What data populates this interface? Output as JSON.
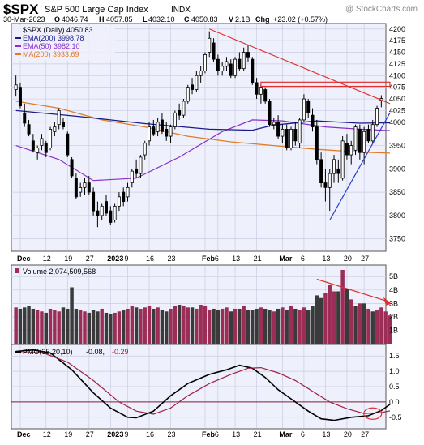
{
  "header": {
    "symbol": "$SPX",
    "name": "S&P 500 Large Cap Index",
    "exchange": "INDX",
    "watermark": "@ StockCharts.com",
    "date": "30-Mar-2023",
    "open_label": "O",
    "open": "4046.74",
    "high_label": "H",
    "high": "4057.85",
    "low_label": "L",
    "low": "4032.10",
    "close_label": "C",
    "close": "4050.83",
    "volume_label": "V",
    "volume": "2.1B",
    "change_label": "Chg",
    "change": "+23.02 (+0.57%)"
  },
  "colors": {
    "up": "#000000",
    "down": "#000000",
    "ema200": "#1a1a8c",
    "ema50": "#8b2fc9",
    "ma200": "#e07b2a",
    "trend_red": "#e03030",
    "trend_blue": "#2a3fcf",
    "vol_up": "#9b2d57",
    "vol_down": "#3a3a3a",
    "pmo": "#000000",
    "pmo_signal": "#a02040",
    "panel_bg": "#eef0fb",
    "grid": "#c9cde3"
  },
  "legend": {
    "price": "$SPX (Daily) 4050.83",
    "ema200": "EMA(200) 3998.78",
    "ema50": "EMA(50) 3982.10",
    "ma200": "MA(200) 3933.69",
    "volume": "Volume 2,074,509,568",
    "pmo_label": "PMO(35,20,10)",
    "pmo_value": "-0.08,",
    "pmo_signal_value": "-0.29"
  },
  "x_labels": [
    "Dec",
    "12",
    "19",
    "27",
    "2023",
    "9",
    "16",
    "23",
    "Feb",
    "6",
    "13",
    "21",
    "Mar",
    "6",
    "13",
    "20",
    "27"
  ],
  "chart_data": [
    {
      "type": "candlestick",
      "title": "$SPX (Daily) 4050.83",
      "ylim": [
        3725,
        4210
      ],
      "y_ticks": [
        3750,
        3800,
        3850,
        3900,
        3950,
        4000,
        4025,
        4050,
        4075,
        4100,
        4125,
        4150,
        4175,
        4200
      ],
      "bars": [
        {
          "o": 4070,
          "h": 4100,
          "l": 4055,
          "c": 4080
        },
        {
          "o": 4075,
          "h": 4085,
          "l": 4030,
          "c": 4035
        },
        {
          "o": 4020,
          "h": 4040,
          "l": 3990,
          "c": 3998
        },
        {
          "o": 3995,
          "h": 4005,
          "l": 3970,
          "c": 3975
        },
        {
          "o": 3960,
          "h": 3975,
          "l": 3935,
          "c": 3940
        },
        {
          "o": 3935,
          "h": 3950,
          "l": 3920,
          "c": 3945
        },
        {
          "o": 3950,
          "h": 3975,
          "l": 3940,
          "c": 3965
        },
        {
          "o": 3955,
          "h": 3960,
          "l": 3925,
          "c": 3935
        },
        {
          "o": 3945,
          "h": 3990,
          "l": 3940,
          "c": 3985
        },
        {
          "o": 3980,
          "h": 4000,
          "l": 3970,
          "c": 3990
        },
        {
          "o": 3995,
          "h": 4030,
          "l": 3985,
          "c": 4025
        },
        {
          "o": 4000,
          "h": 4010,
          "l": 3985,
          "c": 3990
        },
        {
          "o": 3975,
          "h": 3980,
          "l": 3925,
          "c": 3930
        },
        {
          "o": 3920,
          "h": 3925,
          "l": 3880,
          "c": 3885
        },
        {
          "o": 3880,
          "h": 3890,
          "l": 3835,
          "c": 3840
        },
        {
          "o": 3850,
          "h": 3870,
          "l": 3840,
          "c": 3860
        },
        {
          "o": 3860,
          "h": 3880,
          "l": 3845,
          "c": 3870
        },
        {
          "o": 3870,
          "h": 3885,
          "l": 3845,
          "c": 3850
        },
        {
          "o": 3850,
          "h": 3860,
          "l": 3800,
          "c": 3810
        },
        {
          "o": 3810,
          "h": 3830,
          "l": 3775,
          "c": 3800
        },
        {
          "o": 3800,
          "h": 3825,
          "l": 3790,
          "c": 3820
        },
        {
          "o": 3830,
          "h": 3845,
          "l": 3800,
          "c": 3805
        },
        {
          "o": 3810,
          "h": 3820,
          "l": 3780,
          "c": 3785
        },
        {
          "o": 3790,
          "h": 3825,
          "l": 3785,
          "c": 3820
        },
        {
          "o": 3820,
          "h": 3850,
          "l": 3810,
          "c": 3840
        },
        {
          "o": 3850,
          "h": 3860,
          "l": 3820,
          "c": 3830
        },
        {
          "o": 3840,
          "h": 3870,
          "l": 3830,
          "c": 3860
        },
        {
          "o": 3870,
          "h": 3900,
          "l": 3860,
          "c": 3895
        },
        {
          "o": 3900,
          "h": 3920,
          "l": 3880,
          "c": 3890
        },
        {
          "o": 3890,
          "h": 3930,
          "l": 3880,
          "c": 3925
        },
        {
          "o": 3930,
          "h": 3960,
          "l": 3920,
          "c": 3955
        },
        {
          "o": 3960,
          "h": 4000,
          "l": 3950,
          "c": 3990
        },
        {
          "o": 3990,
          "h": 4005,
          "l": 3970,
          "c": 3975
        },
        {
          "o": 3980,
          "h": 4010,
          "l": 3970,
          "c": 4000
        },
        {
          "o": 4005,
          "h": 4020,
          "l": 3975,
          "c": 3980
        },
        {
          "o": 3985,
          "h": 4000,
          "l": 3960,
          "c": 3970
        },
        {
          "o": 3970,
          "h": 3995,
          "l": 3955,
          "c": 3990
        },
        {
          "o": 3990,
          "h": 4025,
          "l": 3985,
          "c": 4020
        },
        {
          "o": 4025,
          "h": 4040,
          "l": 4005,
          "c": 4015
        },
        {
          "o": 4015,
          "h": 4050,
          "l": 4010,
          "c": 4045
        },
        {
          "o": 4045,
          "h": 4080,
          "l": 4040,
          "c": 4075
        },
        {
          "o": 4080,
          "h": 4095,
          "l": 4060,
          "c": 4070
        },
        {
          "o": 4070,
          "h": 4110,
          "l": 4065,
          "c": 4100
        },
        {
          "o": 4100,
          "h": 4120,
          "l": 4085,
          "c": 4110
        },
        {
          "o": 4110,
          "h": 4150,
          "l": 4105,
          "c": 4145
        },
        {
          "o": 4150,
          "h": 4195,
          "l": 4140,
          "c": 4180
        },
        {
          "o": 4170,
          "h": 4180,
          "l": 4130,
          "c": 4135
        },
        {
          "o": 4135,
          "h": 4145,
          "l": 4100,
          "c": 4110
        },
        {
          "o": 4110,
          "h": 4130,
          "l": 4100,
          "c": 4120
        },
        {
          "o": 4120,
          "h": 4140,
          "l": 4110,
          "c": 4130
        },
        {
          "o": 4125,
          "h": 4135,
          "l": 4095,
          "c": 4100
        },
        {
          "o": 4100,
          "h": 4140,
          "l": 4095,
          "c": 4135
        },
        {
          "o": 4135,
          "h": 4150,
          "l": 4110,
          "c": 4115
        },
        {
          "o": 4115,
          "h": 4160,
          "l": 4110,
          "c": 4150
        },
        {
          "o": 4150,
          "h": 4165,
          "l": 4130,
          "c": 4140
        },
        {
          "o": 4135,
          "h": 4140,
          "l": 4080,
          "c": 4085
        },
        {
          "o": 4085,
          "h": 4095,
          "l": 4050,
          "c": 4060
        },
        {
          "o": 4060,
          "h": 4080,
          "l": 4040,
          "c": 4075
        },
        {
          "o": 4070,
          "h": 4075,
          "l": 4040,
          "c": 4045
        },
        {
          "o": 4045,
          "h": 4050,
          "l": 3990,
          "c": 3995
        },
        {
          "o": 3995,
          "h": 4010,
          "l": 3985,
          "c": 4000
        },
        {
          "o": 4000,
          "h": 4015,
          "l": 3965,
          "c": 3970
        },
        {
          "o": 3970,
          "h": 3995,
          "l": 3955,
          "c": 3985
        },
        {
          "o": 3985,
          "h": 3995,
          "l": 3940,
          "c": 3945
        },
        {
          "o": 3945,
          "h": 3990,
          "l": 3940,
          "c": 3985
        },
        {
          "o": 3985,
          "h": 4000,
          "l": 3950,
          "c": 3960
        },
        {
          "o": 3955,
          "h": 4010,
          "l": 3945,
          "c": 4005
        },
        {
          "o": 4005,
          "h": 4060,
          "l": 4000,
          "c": 4050
        },
        {
          "o": 4045,
          "h": 4050,
          "l": 4010,
          "c": 4020
        },
        {
          "o": 4015,
          "h": 4030,
          "l": 3980,
          "c": 3990
        },
        {
          "o": 3990,
          "h": 4005,
          "l": 3910,
          "c": 3920
        },
        {
          "o": 3920,
          "h": 3935,
          "l": 3860,
          "c": 3870
        },
        {
          "o": 3870,
          "h": 3900,
          "l": 3830,
          "c": 3860
        },
        {
          "o": 3860,
          "h": 3900,
          "l": 3810,
          "c": 3890
        },
        {
          "o": 3890,
          "h": 3930,
          "l": 3870,
          "c": 3920
        },
        {
          "o": 3900,
          "h": 3920,
          "l": 3870,
          "c": 3890
        },
        {
          "o": 3880,
          "h": 3970,
          "l": 3875,
          "c": 3960
        },
        {
          "o": 3955,
          "h": 3975,
          "l": 3920,
          "c": 3930
        },
        {
          "o": 3930,
          "h": 3960,
          "l": 3910,
          "c": 3950
        },
        {
          "o": 3940,
          "h": 3995,
          "l": 3930,
          "c": 3990
        },
        {
          "o": 3985,
          "h": 3995,
          "l": 3920,
          "c": 3935
        },
        {
          "o": 3935,
          "h": 3990,
          "l": 3910,
          "c": 3980
        },
        {
          "o": 3985,
          "h": 3995,
          "l": 3955,
          "c": 3960
        },
        {
          "o": 3960,
          "h": 4005,
          "l": 3955,
          "c": 3995
        },
        {
          "o": 3995,
          "h": 4035,
          "l": 3990,
          "c": 4030
        },
        {
          "o": 4046.74,
          "h": 4057.85,
          "l": 4032.1,
          "c": 4050.83
        }
      ],
      "ema200": [
        [
          0,
          4025
        ],
        [
          15,
          4012
        ],
        [
          30,
          3997
        ],
        [
          45,
          3985
        ],
        [
          55,
          3983
        ],
        [
          60,
          3994
        ],
        [
          70,
          4003
        ],
        [
          80,
          3998
        ],
        [
          87,
          3998.78
        ]
      ],
      "ema50": [
        [
          0,
          3950
        ],
        [
          10,
          3920
        ],
        [
          18,
          3875
        ],
        [
          28,
          3880
        ],
        [
          38,
          3925
        ],
        [
          48,
          3980
        ],
        [
          55,
          4005
        ],
        [
          62,
          4003
        ],
        [
          72,
          3990
        ],
        [
          80,
          3985
        ],
        [
          87,
          3982.1
        ]
      ],
      "ma200": [
        [
          0,
          4045
        ],
        [
          10,
          4030
        ],
        [
          20,
          4005
        ],
        [
          30,
          3990
        ],
        [
          40,
          3970
        ],
        [
          50,
          3958
        ],
        [
          60,
          3950
        ],
        [
          70,
          3942
        ],
        [
          80,
          3936
        ],
        [
          87,
          3933.69
        ]
      ],
      "annotations": [
        {
          "kind": "line",
          "color": "trend_red",
          "from": [
            45,
            4200
          ],
          "to": [
            87,
            4040
          ]
        },
        {
          "kind": "line",
          "color": "trend_blue",
          "from": [
            73,
            3790
          ],
          "to": [
            87,
            4020
          ]
        },
        {
          "kind": "box",
          "color": "trend_red",
          "x0": 57,
          "x1": 87,
          "y0": 4077,
          "y1": 4086
        }
      ]
    },
    {
      "type": "bar",
      "title": "Volume 2,074,509,568",
      "ylim": [
        0,
        5.8
      ],
      "y_ticks": [
        1,
        2,
        3,
        4,
        5
      ],
      "y_tick_labels": [
        "1B",
        "2B",
        "3B",
        "4B",
        "5B"
      ],
      "values": [
        2.7,
        2.6,
        2.7,
        2.8,
        2.6,
        2.5,
        2.4,
        2.3,
        2.6,
        2.5,
        2.4,
        2.7,
        2.6,
        4.2,
        2.6,
        2.5,
        2.4,
        2.3,
        2.5,
        2.4,
        2.6,
        2.3,
        2.2,
        2.3,
        2.4,
        2.5,
        2.6,
        2.8,
        2.7,
        2.6,
        2.7,
        2.8,
        2.6,
        2.7,
        2.5,
        2.4,
        2.6,
        2.8,
        2.9,
        2.8,
        2.7,
        2.7,
        2.6,
        2.9,
        2.8,
        2.5,
        2.6,
        2.5,
        2.6,
        2.7,
        2.4,
        2.6,
        2.6,
        2.8,
        2.5,
        2.5,
        2.6,
        2.7,
        2.6,
        2.5,
        2.4,
        2.6,
        2.7,
        2.5,
        2.8,
        2.6,
        2.5,
        2.7,
        2.5,
        2.8,
        3.6,
        3.4,
        3.8,
        4.4,
        3.9,
        3.9,
        5.5,
        4.1,
        3.3,
        2.8,
        3.0,
        3.0,
        2.6,
        2.4,
        2.5,
        2.7,
        2.4,
        2.1
      ],
      "up": [
        true,
        false,
        false,
        false,
        false,
        true,
        true,
        false,
        true,
        true,
        true,
        false,
        false,
        false,
        false,
        true,
        true,
        false,
        false,
        false,
        true,
        false,
        false,
        true,
        true,
        false,
        true,
        true,
        false,
        true,
        true,
        true,
        false,
        true,
        false,
        false,
        true,
        true,
        false,
        true,
        true,
        false,
        true,
        true,
        true,
        true,
        false,
        false,
        true,
        true,
        false,
        true,
        false,
        true,
        false,
        false,
        false,
        true,
        false,
        false,
        true,
        false,
        true,
        false,
        true,
        false,
        true,
        true,
        false,
        false,
        false,
        false,
        true,
        true,
        true,
        false,
        true,
        false,
        true,
        false,
        true,
        false,
        true,
        false,
        true,
        true,
        true,
        true
      ],
      "trend_arrow": {
        "from": [
          70,
          4.8
        ],
        "to": [
          87,
          3.1
        ]
      }
    },
    {
      "type": "line",
      "title": "PMO(35,20,10)",
      "ylim": [
        -0.85,
        1.85
      ],
      "y_ticks": [
        -0.5,
        0.0,
        0.5,
        1.0,
        1.5
      ],
      "series": [
        {
          "key": "pmo",
          "values": [
            [
              0,
              1.65
            ],
            [
              4,
              1.7
            ],
            [
              8,
              1.6
            ],
            [
              13,
              1.05
            ],
            [
              18,
              0.3
            ],
            [
              22,
              -0.2
            ],
            [
              26,
              -0.5
            ],
            [
              28,
              -0.52
            ],
            [
              32,
              -0.3
            ],
            [
              36,
              0.2
            ],
            [
              40,
              0.6
            ],
            [
              45,
              0.9
            ],
            [
              49,
              1.05
            ],
            [
              52,
              1.2
            ],
            [
              55,
              1.1
            ],
            [
              58,
              0.8
            ],
            [
              61,
              0.4
            ],
            [
              65,
              0.0
            ],
            [
              68,
              -0.3
            ],
            [
              71,
              -0.55
            ],
            [
              74,
              -0.6
            ],
            [
              78,
              -0.5
            ],
            [
              82,
              -0.45
            ],
            [
              85,
              -0.28
            ],
            [
              87,
              -0.08
            ]
          ]
        },
        {
          "key": "pmo_signal",
          "values": [
            [
              0,
              1.6
            ],
            [
              6,
              1.62
            ],
            [
              12,
              1.3
            ],
            [
              18,
              0.7
            ],
            [
              24,
              0.0
            ],
            [
              28,
              -0.3
            ],
            [
              32,
              -0.4
            ],
            [
              36,
              -0.2
            ],
            [
              40,
              0.2
            ],
            [
              45,
              0.6
            ],
            [
              50,
              0.9
            ],
            [
              54,
              1.1
            ],
            [
              57,
              1.12
            ],
            [
              61,
              0.95
            ],
            [
              65,
              0.7
            ],
            [
              69,
              0.35
            ],
            [
              73,
              0.0
            ],
            [
              77,
              -0.22
            ],
            [
              81,
              -0.38
            ],
            [
              85,
              -0.35
            ],
            [
              87,
              -0.29
            ]
          ]
        }
      ],
      "zero_line": 0,
      "highlight_circle": {
        "x": 83,
        "y": -0.38
      }
    }
  ]
}
